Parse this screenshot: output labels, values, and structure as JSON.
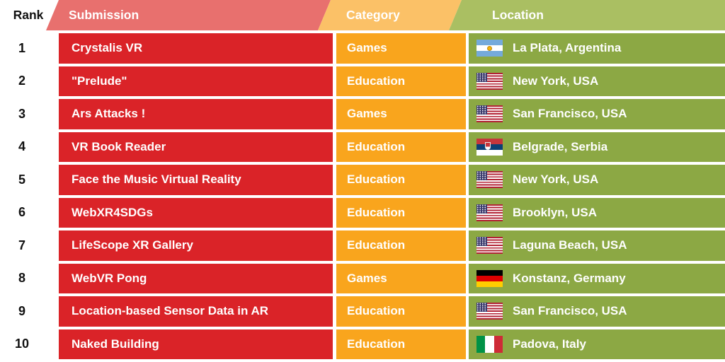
{
  "palette": {
    "background": "#FFFFFF",
    "header-red": "#E8706E",
    "cell-red": "#DA2328",
    "header-orange": "#FBC167",
    "cell-orange": "#F9A51D",
    "header-green": "#AABF62",
    "cell-green": "#8CA844",
    "rank-text": "#111111",
    "cell-text": "#FFFFFF"
  },
  "chart_data": {
    "type": "table",
    "columns": [
      "Rank",
      "Submission",
      "Category",
      "Location"
    ],
    "rows": [
      {
        "rank": "1",
        "submission": "Crystalis VR",
        "category": "Games",
        "location": "La Plata, Argentina",
        "flag": "ar",
        "flag_icon": "argentina-flag-icon"
      },
      {
        "rank": "2",
        "submission": "\"Prelude\"",
        "category": "Education",
        "location": "New York, USA",
        "flag": "us",
        "flag_icon": "usa-flag-icon"
      },
      {
        "rank": "3",
        "submission": "Ars Attacks !",
        "category": "Games",
        "location": "San Francisco, USA",
        "flag": "us",
        "flag_icon": "usa-flag-icon"
      },
      {
        "rank": "4",
        "submission": "VR Book Reader",
        "category": "Education",
        "location": "Belgrade, Serbia",
        "flag": "rs",
        "flag_icon": "serbia-flag-icon"
      },
      {
        "rank": "5",
        "submission": "Face the Music Virtual Reality",
        "category": "Education",
        "location": "New York, USA",
        "flag": "us",
        "flag_icon": "usa-flag-icon"
      },
      {
        "rank": "6",
        "submission": "WebXR4SDGs",
        "category": "Education",
        "location": "Brooklyn, USA",
        "flag": "us",
        "flag_icon": "usa-flag-icon"
      },
      {
        "rank": "7",
        "submission": "LifeScope XR Gallery",
        "category": "Education",
        "location": "Laguna Beach, USA",
        "flag": "us",
        "flag_icon": "usa-flag-icon"
      },
      {
        "rank": "8",
        "submission": "WebVR Pong",
        "category": "Games",
        "location": "Konstanz, Germany",
        "flag": "de",
        "flag_icon": "germany-flag-icon"
      },
      {
        "rank": "9",
        "submission": "Location-based Sensor Data in AR",
        "category": "Education",
        "location": "San Francisco, USA",
        "flag": "us",
        "flag_icon": "usa-flag-icon"
      },
      {
        "rank": "10",
        "submission": "Naked Building",
        "category": "Education",
        "location": "Padova, Italy",
        "flag": "it",
        "flag_icon": "italy-flag-icon"
      }
    ]
  }
}
